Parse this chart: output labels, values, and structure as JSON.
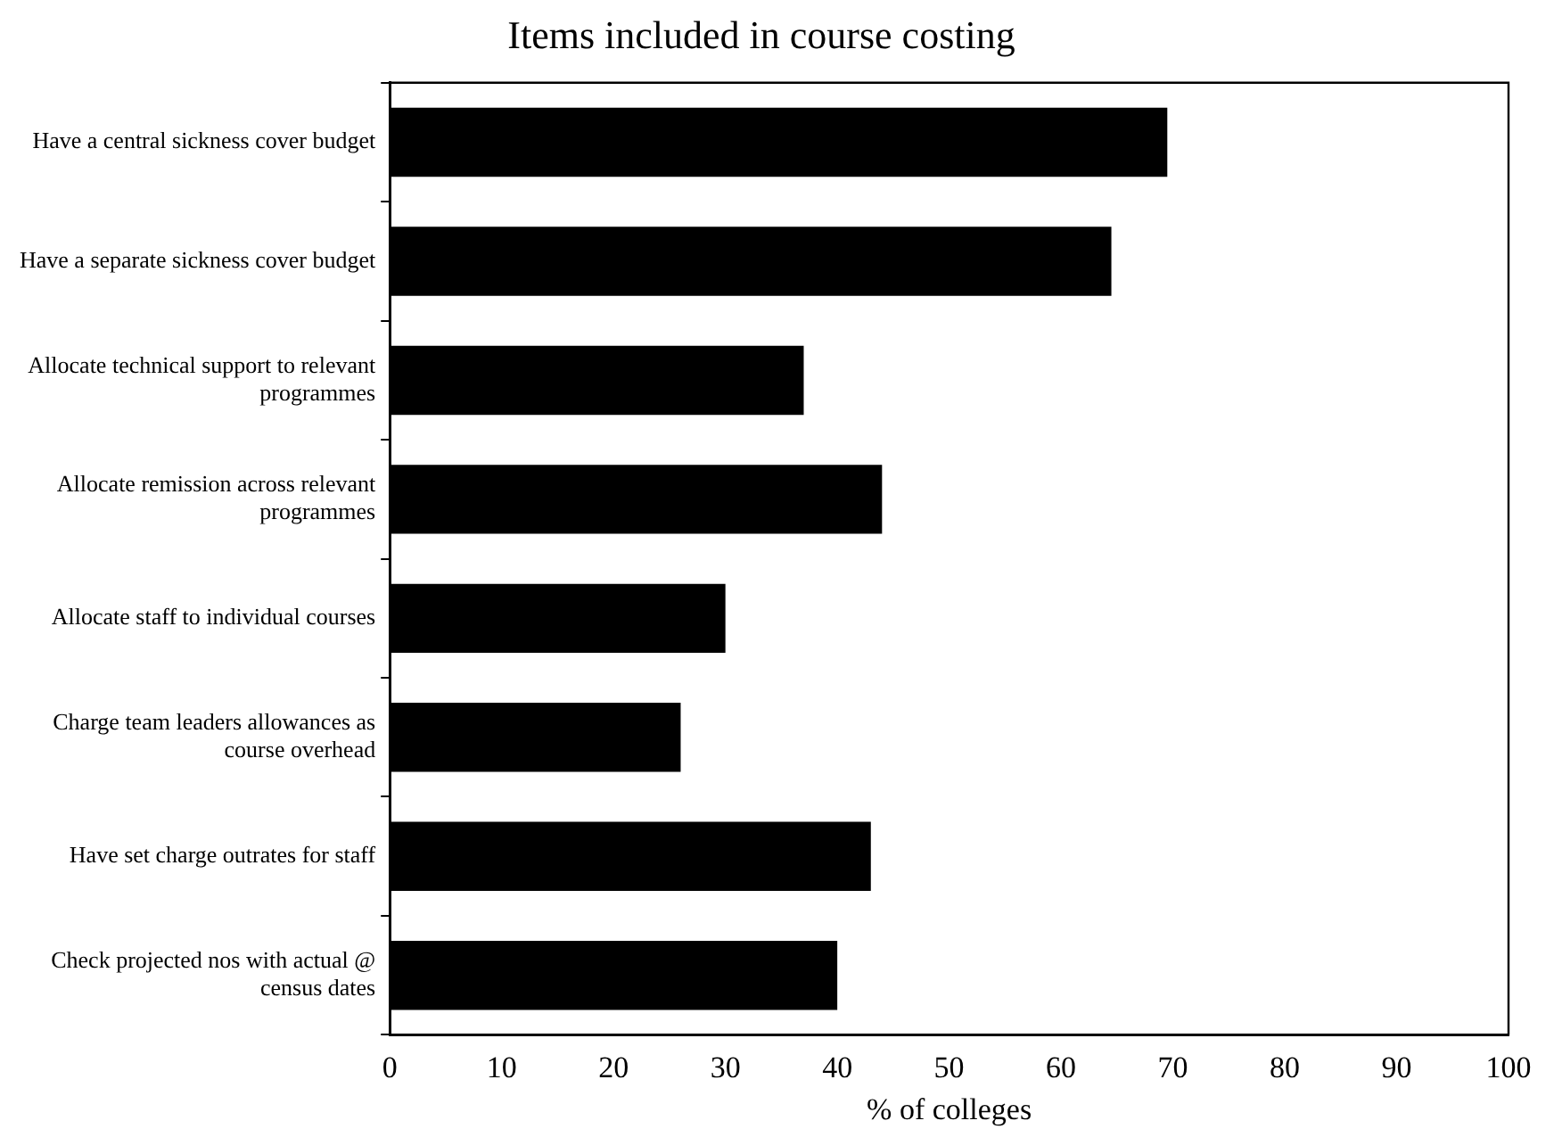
{
  "chart_data": {
    "type": "bar",
    "orientation": "horizontal",
    "title": "Items included in course costing",
    "xlabel": "% of colleges",
    "categories": [
      "Have a central sickness cover budget",
      "Have a separate sickness cover budget",
      "Allocate technical support to relevant programmes",
      "Allocate remission across relevant programmes",
      "Allocate staff to individual courses",
      "Charge team leaders allowances as course overhead",
      "Have set charge outrates for staff",
      "Check projected nos with actual @ census dates"
    ],
    "values": [
      69.5,
      64.5,
      37,
      44,
      30,
      26,
      43,
      40
    ],
    "color": "#000000",
    "xlim": [
      0,
      100
    ],
    "xticks": [
      0,
      10,
      20,
      30,
      40,
      50,
      60,
      70,
      80,
      90,
      100
    ],
    "grid": false,
    "legend": false
  }
}
